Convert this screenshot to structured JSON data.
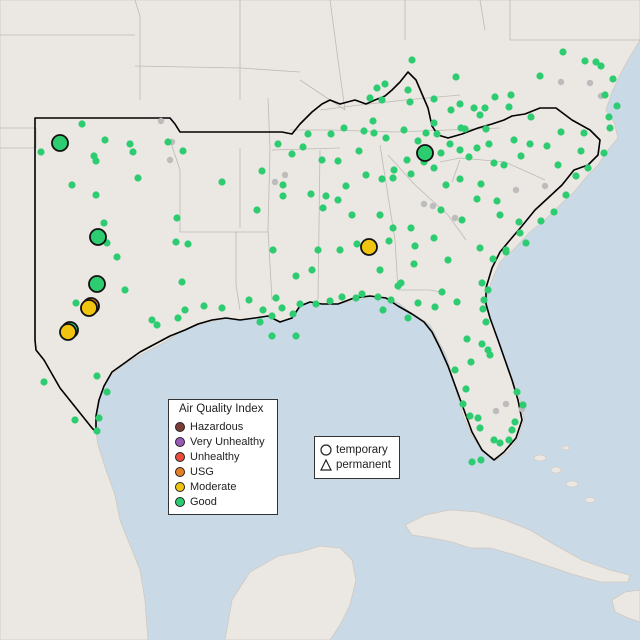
{
  "map": {
    "colors": {
      "water": "#c9d9e6",
      "land": "#ebe7e2",
      "land_edge": "#cfc9c1",
      "state_border": "#bdbab5",
      "region_outline": "#000000",
      "monitor_minor": "#bcbcbc"
    }
  },
  "legend": {
    "title": "Air Quality Index",
    "items": [
      {
        "label": "Hazardous",
        "color": "#7e3b35"
      },
      {
        "label": "Very Unhealthy",
        "color": "#9b59b6"
      },
      {
        "label": "Unhealthy",
        "color": "#e74c3c"
      },
      {
        "label": "USG",
        "color": "#e67e22"
      },
      {
        "label": "Moderate",
        "color": "#f1c40f"
      },
      {
        "label": "Good",
        "color": "#2ecc71"
      }
    ]
  },
  "shape_legend": {
    "items": [
      {
        "label": "temporary",
        "shape": "circle"
      },
      {
        "label": "permanent",
        "shape": "triangle"
      }
    ]
  }
}
